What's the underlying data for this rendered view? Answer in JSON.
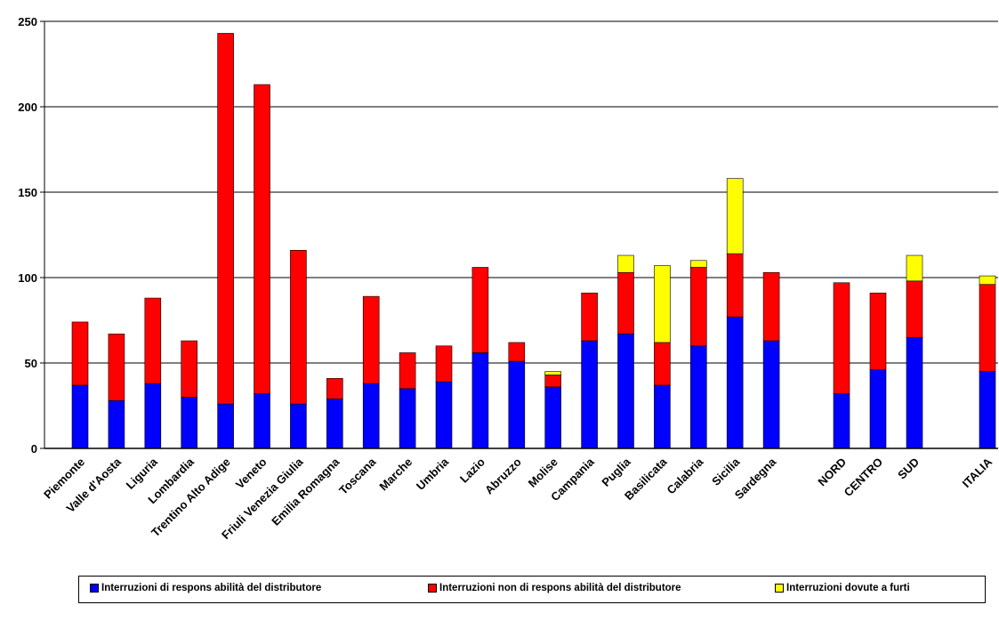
{
  "chart_data": {
    "type": "bar",
    "stacked": true,
    "categories": [
      "Piemonte",
      "Valle d'Aosta",
      "Liguria",
      "Lombardia",
      "Trentino Alto Adige",
      "Veneto",
      "Friuli Venezia Giulia",
      "Emilia Romagna",
      "Toscana",
      "Marche",
      "Umbria",
      "Lazio",
      "Abruzzo",
      "Molise",
      "Campania",
      "Puglia",
      "Basilicata",
      "Calabria",
      "Sicilia",
      "Sardegna",
      "NORD",
      "CENTRO",
      "SUD",
      "ITALIA"
    ],
    "series": [
      {
        "name": "Interruzioni di respons abilità del distributore",
        "color": "#0000ff",
        "values": [
          37,
          28,
          38,
          30,
          26,
          32,
          26,
          29,
          38,
          35,
          39,
          56,
          51,
          36,
          63,
          67,
          37,
          60,
          77,
          63,
          32,
          46,
          65,
          45
        ]
      },
      {
        "name": "Interruzioni non di respons abilità del distributore",
        "color": "#ff0000",
        "values": [
          37,
          39,
          50,
          33,
          217,
          181,
          90,
          12,
          51,
          21,
          21,
          50,
          11,
          7,
          28,
          36,
          25,
          46,
          37,
          40,
          65,
          45,
          33,
          51
        ]
      },
      {
        "name": "Interruzioni dovute a furti",
        "color": "#ffff00",
        "values": [
          0,
          0,
          0,
          0,
          0,
          0,
          0,
          0,
          0,
          0,
          0,
          0,
          0,
          2,
          0,
          10,
          45,
          4,
          44,
          0,
          0,
          0,
          15,
          5
        ]
      }
    ],
    "ylim": [
      0,
      250
    ],
    "yticks": [
      0,
      50,
      100,
      150,
      200,
      250
    ],
    "grid": true,
    "legend_position": "bottom"
  }
}
